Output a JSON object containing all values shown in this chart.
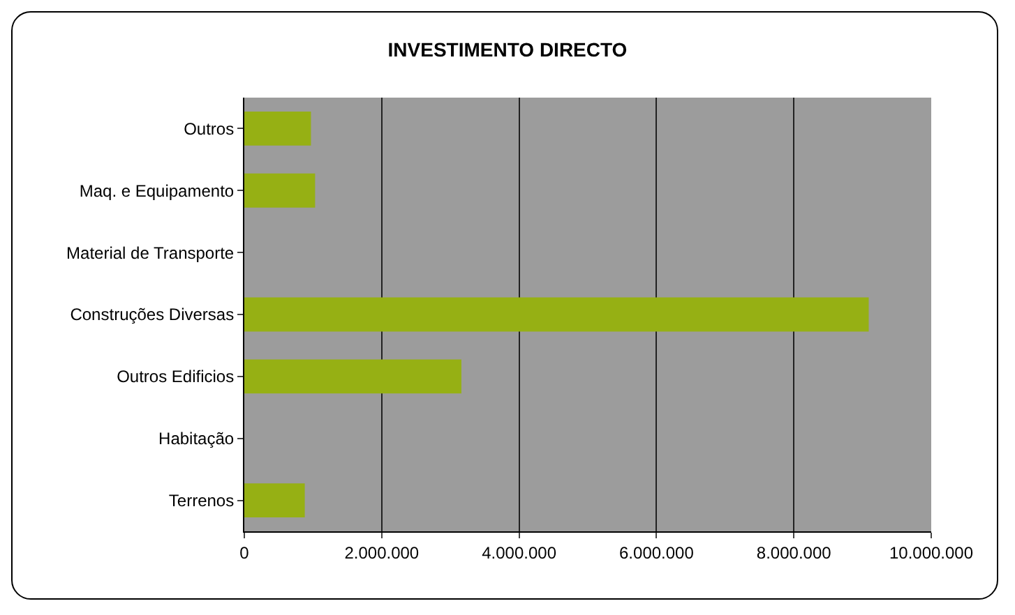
{
  "chart_data": {
    "type": "bar",
    "title": "INVESTIMENTO DIRECTO",
    "orientation": "horizontal",
    "categories": [
      "Outros",
      "Maq. e Equipamento",
      "Material de Transporte",
      "Construções Diversas",
      "Outros Edificios",
      "Habitação",
      "Terrenos"
    ],
    "values": [
      970000,
      1030000,
      0,
      9090000,
      3160000,
      0,
      880000
    ],
    "color": "#96b014",
    "xlim": [
      0,
      10000000
    ],
    "xticks": [
      0,
      {
        "value": 2000000,
        "label": "2.000.000"
      },
      {
        "value": 4000000,
        "label": "4.000.000"
      },
      {
        "value": 6000000,
        "label": "6.000.000"
      },
      {
        "value": 8000000,
        "label": "8.000.000"
      },
      {
        "value": 10000000,
        "label": "10.000.000"
      }
    ],
    "grid": "x",
    "legend": false
  }
}
